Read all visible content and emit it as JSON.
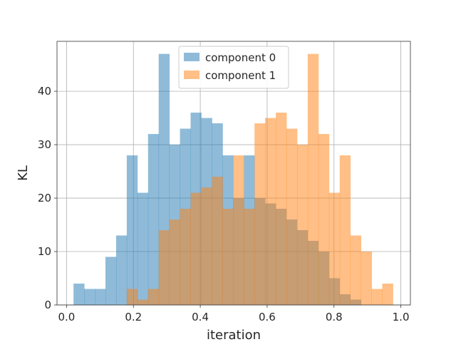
{
  "chart_data": {
    "type": "bar",
    "title": "",
    "xlabel": "iteration",
    "ylabel": "KL",
    "xlim": [
      -0.0286,
      1.0286
    ],
    "ylim": [
      0,
      49.35
    ],
    "xticks": [
      0.0,
      0.2,
      0.4,
      0.6,
      0.8,
      1.0
    ],
    "xtick_labels": [
      "0.0",
      "0.2",
      "0.4",
      "0.6",
      "0.8",
      "1.0"
    ],
    "yticks": [
      0,
      10,
      20,
      30,
      40
    ],
    "ytick_labels": [
      "0",
      "10",
      "20",
      "30",
      "40"
    ],
    "grid": true,
    "legend_position": "upper center",
    "bins": {
      "start": 0.0208,
      "width": 0.03185,
      "count": 30
    },
    "series": [
      {
        "name": "component 0",
        "color": "#1f77b4",
        "alpha": 0.5,
        "values": [
          4,
          3,
          3,
          9,
          13,
          28,
          21,
          32,
          47,
          30,
          33,
          36,
          35,
          34,
          28,
          20,
          28,
          20,
          19,
          18,
          16,
          14,
          12,
          10,
          5,
          2,
          1,
          0,
          0,
          0
        ]
      },
      {
        "name": "component 1",
        "color": "#ff7f0e",
        "alpha": 0.5,
        "values": [
          0,
          0,
          0,
          0,
          0,
          3,
          1,
          3,
          14,
          16,
          18,
          21,
          22,
          24,
          18,
          28,
          18,
          34,
          35,
          36,
          33,
          30,
          47,
          32,
          21,
          28,
          13,
          10,
          3,
          4
        ]
      }
    ]
  }
}
